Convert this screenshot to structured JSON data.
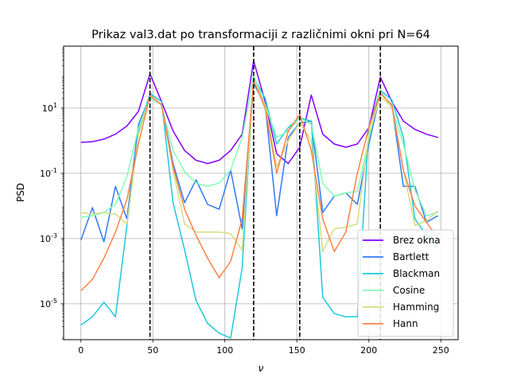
{
  "chart_data": {
    "type": "line",
    "title": "Prikaz val3.dat po transformaciji z različnimi okni pri N=64",
    "xlabel": "ν",
    "ylabel": "PSD",
    "xlim": [
      -12,
      262
    ],
    "ylim_log10": [
      -6.1,
      2.9
    ],
    "y_scale": "log",
    "grid": true,
    "legend_position": "lower-right",
    "x_ticks": [
      0,
      50,
      100,
      150,
      200,
      250
    ],
    "x_tick_labels": [
      "0",
      "50",
      "100",
      "150",
      "200",
      "250"
    ],
    "y_ticks_log10": [
      -5,
      -3,
      -1,
      1
    ],
    "y_tick_labels": [
      "10^-5",
      "10^-3",
      "10^-1",
      "10^1"
    ],
    "vlines": [
      48,
      120,
      152,
      208
    ],
    "x": [
      0,
      8,
      16,
      24,
      32,
      40,
      48,
      56,
      64,
      72,
      80,
      88,
      96,
      104,
      112,
      120,
      128,
      136,
      144,
      152,
      160,
      168,
      176,
      184,
      192,
      200,
      208,
      216,
      224,
      232,
      240,
      248
    ],
    "series": [
      {
        "name": "Brez okna",
        "color": "#8000ff",
        "log10_values": [
          -0.05,
          -0.03,
          0.05,
          0.2,
          0.45,
          0.9,
          2.05,
          1.2,
          0.3,
          -0.3,
          -0.6,
          -0.7,
          -0.6,
          -0.3,
          0.2,
          2.45,
          1.2,
          -0.4,
          -0.7,
          -0.2,
          1.4,
          0.2,
          -0.1,
          -0.2,
          -0.1,
          0.4,
          1.95,
          1.2,
          0.6,
          0.35,
          0.2,
          0.1
        ]
      },
      {
        "name": "Bartlett",
        "color": "#3079f5",
        "log10_values": [
          -3.05,
          -2.05,
          -3.1,
          -1.4,
          -2.4,
          0.5,
          1.35,
          1.1,
          -0.7,
          -1.9,
          -1.2,
          -1.95,
          -2.1,
          -0.9,
          -2.7,
          1.75,
          1.1,
          -2.3,
          0.1,
          0.55,
          0.6,
          -2.2,
          -1.7,
          -1.6,
          -1.95,
          -0.1,
          1.45,
          1.1,
          -1.4,
          -1.4,
          -2.5,
          -2.3
        ]
      },
      {
        "name": "Blackman",
        "color": "#1cc9d9",
        "log10_values": [
          -5.65,
          -5.4,
          -4.95,
          -5.4,
          -2.6,
          0.3,
          1.45,
          1.2,
          -1.9,
          -3.35,
          -4.9,
          -5.6,
          -5.9,
          -6.05,
          -3.9,
          1.95,
          1.3,
          -0.1,
          0.4,
          0.7,
          0.6,
          -4.8,
          -5.3,
          -5.4,
          -5.4,
          0.4,
          1.55,
          1.25,
          0.1,
          -2.4,
          -2.9,
          -3.3
        ]
      },
      {
        "name": "Cosine",
        "color": "#80ffb4",
        "log10_values": [
          -2.35,
          -2.3,
          -2.2,
          -1.95,
          -1.1,
          0.4,
          1.3,
          1.1,
          -0.3,
          -0.95,
          -1.3,
          -1.4,
          -1.3,
          -0.9,
          0.1,
          2.0,
          1.1,
          0.1,
          0.3,
          0.7,
          0.5,
          -1.3,
          -1.7,
          -1.6,
          -1.55,
          0.05,
          1.55,
          1.0,
          -0.1,
          -1.5,
          -2.3,
          -2.2
        ]
      },
      {
        "name": "Hamming",
        "color": "#d4dd80",
        "log10_values": [
          -2.2,
          -2.25,
          -2.2,
          -2.25,
          -2.55,
          0.2,
          1.35,
          1.1,
          -0.9,
          -2.55,
          -2.8,
          -2.8,
          -2.8,
          -2.85,
          -3.35,
          1.85,
          1.1,
          -0.8,
          0.0,
          0.55,
          0.0,
          -3.4,
          -2.7,
          -2.65,
          -2.55,
          0.2,
          1.35,
          1.05,
          -0.9,
          -2.6,
          -2.45,
          -2.15
        ]
      },
      {
        "name": "Hann",
        "color": "#ff8047",
        "log10_values": [
          -4.6,
          -4.25,
          -3.6,
          -2.8,
          -1.8,
          -0.1,
          1.4,
          1.1,
          -0.8,
          -2.1,
          -2.9,
          -3.6,
          -4.2,
          -3.7,
          -2.4,
          1.85,
          1.0,
          -1.0,
          0.3,
          0.8,
          -0.3,
          -2.4,
          -3.4,
          -2.8,
          -1.0,
          0.4,
          1.45,
          1.1,
          -0.9,
          -2.0,
          -2.5,
          -3.0
        ]
      }
    ]
  }
}
